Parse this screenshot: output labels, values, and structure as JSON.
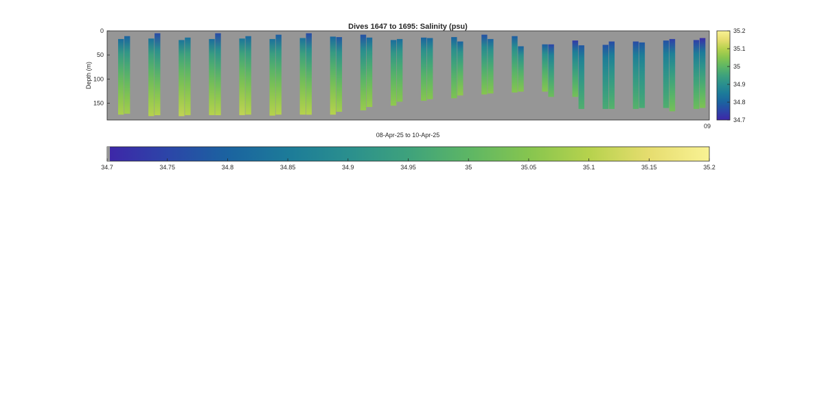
{
  "chart_data": [
    {
      "type": "heatmap",
      "title": "Dives 1647 to 1695: Salinity (psu)",
      "xlabel": "08-Apr-25 to 10-Apr-25",
      "ylabel": "Depth (m)",
      "ylim": [
        0,
        185
      ],
      "y_reversed": true,
      "yticks": [
        "0",
        "50",
        "100",
        "150"
      ],
      "xtick_overlap_label": "09",
      "background_color": "#969696",
      "grid": false,
      "color_range": [
        34.7,
        35.2
      ],
      "profiles": [
        {
          "top": 17,
          "bottom": 174,
          "sal_top": 34.82,
          "sal_bottom": 35.09
        },
        {
          "top": 11,
          "bottom": 172,
          "sal_top": 34.8,
          "sal_bottom": 35.08
        },
        {
          "top": 16,
          "bottom": 177,
          "sal_top": 34.83,
          "sal_bottom": 35.1
        },
        {
          "top": 5,
          "bottom": 175,
          "sal_top": 34.76,
          "sal_bottom": 35.1
        },
        {
          "top": 19,
          "bottom": 177,
          "sal_top": 34.84,
          "sal_bottom": 35.11
        },
        {
          "top": 14,
          "bottom": 175,
          "sal_top": 34.83,
          "sal_bottom": 35.1
        },
        {
          "top": 17,
          "bottom": 175,
          "sal_top": 34.82,
          "sal_bottom": 35.1
        },
        {
          "top": 5,
          "bottom": 175,
          "sal_top": 34.76,
          "sal_bottom": 35.1
        },
        {
          "top": 16,
          "bottom": 175,
          "sal_top": 34.84,
          "sal_bottom": 35.11
        },
        {
          "top": 11,
          "bottom": 174,
          "sal_top": 34.81,
          "sal_bottom": 35.1
        },
        {
          "top": 17,
          "bottom": 176,
          "sal_top": 34.83,
          "sal_bottom": 35.1
        },
        {
          "top": 8,
          "bottom": 174,
          "sal_top": 34.79,
          "sal_bottom": 35.1
        },
        {
          "top": 15,
          "bottom": 174,
          "sal_top": 34.83,
          "sal_bottom": 35.1
        },
        {
          "top": 5,
          "bottom": 174,
          "sal_top": 34.76,
          "sal_bottom": 35.1
        },
        {
          "top": 12,
          "bottom": 174,
          "sal_top": 34.81,
          "sal_bottom": 35.1
        },
        {
          "top": 13,
          "bottom": 168,
          "sal_top": 34.78,
          "sal_bottom": 35.08
        },
        {
          "top": 8,
          "bottom": 165,
          "sal_top": 34.77,
          "sal_bottom": 35.07
        },
        {
          "top": 14,
          "bottom": 158,
          "sal_top": 34.81,
          "sal_bottom": 35.07
        },
        {
          "top": 19,
          "bottom": 155,
          "sal_top": 34.82,
          "sal_bottom": 35.06
        },
        {
          "top": 17,
          "bottom": 147,
          "sal_top": 34.82,
          "sal_bottom": 35.05
        },
        {
          "top": 14,
          "bottom": 145,
          "sal_top": 34.8,
          "sal_bottom": 35.05
        },
        {
          "top": 15,
          "bottom": 142,
          "sal_top": 34.81,
          "sal_bottom": 35.05
        },
        {
          "top": 13,
          "bottom": 140,
          "sal_top": 34.8,
          "sal_bottom": 35.04
        },
        {
          "top": 22,
          "bottom": 134,
          "sal_top": 34.8,
          "sal_bottom": 35.06
        },
        {
          "top": 8,
          "bottom": 132,
          "sal_top": 34.77,
          "sal_bottom": 35.05
        },
        {
          "top": 17,
          "bottom": 130,
          "sal_top": 34.8,
          "sal_bottom": 35.05
        },
        {
          "top": 11,
          "bottom": 128,
          "sal_top": 34.79,
          "sal_bottom": 35.05
        },
        {
          "top": 32,
          "bottom": 126,
          "sal_top": 34.8,
          "sal_bottom": 35.05
        },
        {
          "top": 28,
          "bottom": 126,
          "sal_top": 34.79,
          "sal_bottom": 35.05
        },
        {
          "top": 28,
          "bottom": 137,
          "sal_top": 34.75,
          "sal_bottom": 35.02
        },
        {
          "top": 20,
          "bottom": 137,
          "sal_top": 34.73,
          "sal_bottom": 35.03
        },
        {
          "top": 30,
          "bottom": 162,
          "sal_top": 34.78,
          "sal_bottom": 34.98
        },
        {
          "top": 29,
          "bottom": 162,
          "sal_top": 34.77,
          "sal_bottom": 34.97
        },
        {
          "top": 22,
          "bottom": 162,
          "sal_top": 34.76,
          "sal_bottom": 34.99
        },
        {
          "top": 22,
          "bottom": 162,
          "sal_top": 34.76,
          "sal_bottom": 34.99
        },
        {
          "top": 24,
          "bottom": 160,
          "sal_top": 34.78,
          "sal_bottom": 34.97
        },
        {
          "top": 20,
          "bottom": 160,
          "sal_top": 34.77,
          "sal_bottom": 34.98
        },
        {
          "top": 17,
          "bottom": 167,
          "sal_top": 34.74,
          "sal_bottom": 35.03
        },
        {
          "top": 19,
          "bottom": 162,
          "sal_top": 34.74,
          "sal_bottom": 35.02
        },
        {
          "top": 15,
          "bottom": 160,
          "sal_top": 34.71,
          "sal_bottom": 35.04
        }
      ],
      "colorbars": [
        {
          "orientation": "vertical",
          "ticks": [
            "35.2",
            "35.1",
            "35",
            "34.9",
            "34.8",
            "34.7"
          ]
        },
        {
          "orientation": "horizontal",
          "ticks": [
            "34.7",
            "34.75",
            "34.8",
            "34.85",
            "34.9",
            "34.95",
            "35",
            "35.05",
            "35.1",
            "35.15",
            "35.2"
          ]
        }
      ],
      "colormap": [
        "#3e26a8",
        "#2c45a8",
        "#1b63a0",
        "#1c7b99",
        "#2a8f8e",
        "#3ea27c",
        "#5db665",
        "#86c54f",
        "#b6d24d",
        "#e6dd6f",
        "#f9f294"
      ]
    }
  ]
}
